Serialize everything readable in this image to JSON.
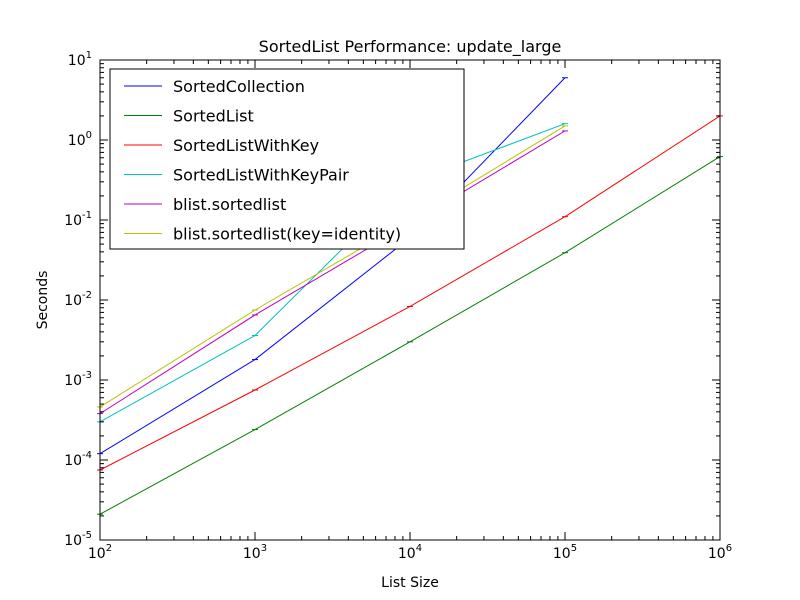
{
  "chart_data": {
    "type": "line",
    "title": "SortedList Performance: update_large",
    "xlabel": "List Size",
    "ylabel": "Seconds",
    "xscale": "log",
    "yscale": "log",
    "xlim": [
      100,
      1000000
    ],
    "ylim": [
      1e-05,
      10
    ],
    "x_ticks": [
      {
        "value": 100,
        "base": "10",
        "exp": "2"
      },
      {
        "value": 1000,
        "base": "10",
        "exp": "3"
      },
      {
        "value": 10000,
        "base": "10",
        "exp": "4"
      },
      {
        "value": 100000,
        "base": "10",
        "exp": "5"
      },
      {
        "value": 1000000,
        "base": "10",
        "exp": "6"
      }
    ],
    "y_ticks": [
      {
        "value": 1e-05,
        "base": "10",
        "exp": "-5"
      },
      {
        "value": 0.0001,
        "base": "10",
        "exp": "-4"
      },
      {
        "value": 0.001,
        "base": "10",
        "exp": "-3"
      },
      {
        "value": 0.01,
        "base": "10",
        "exp": "-2"
      },
      {
        "value": 0.1,
        "base": "10",
        "exp": "-1"
      },
      {
        "value": 1,
        "base": "10",
        "exp": "0"
      },
      {
        "value": 10,
        "base": "10",
        "exp": "1"
      }
    ],
    "grid": false,
    "legend_position": "top-left",
    "series": [
      {
        "name": "SortedCollection",
        "color": "#0000ff",
        "points": [
          [
            100,
            0.00012
          ],
          [
            1000,
            0.0018
          ],
          [
            10000,
            0.06
          ],
          [
            100000,
            6.0
          ]
        ]
      },
      {
        "name": "SortedList",
        "color": "#008000",
        "points": [
          [
            100,
            2.1e-05
          ],
          [
            1000,
            0.00024
          ],
          [
            10000,
            0.003
          ],
          [
            100000,
            0.039
          ],
          [
            1000000,
            0.62
          ]
        ]
      },
      {
        "name": "SortedListWithKey",
        "color": "#ff0000",
        "points": [
          [
            100,
            7.5e-05
          ],
          [
            1000,
            0.00075
          ],
          [
            10000,
            0.0083
          ],
          [
            100000,
            0.11
          ],
          [
            1000000,
            2.0
          ]
        ]
      },
      {
        "name": "SortedListWithKeyPair",
        "color": "#00bfbf",
        "points": [
          [
            100,
            0.0003
          ],
          [
            1000,
            0.0036
          ],
          [
            10000,
            0.3
          ],
          [
            100000,
            1.6
          ]
        ]
      },
      {
        "name": "blist.sortedlist",
        "color": "#bf00bf",
        "points": [
          [
            100,
            0.00038
          ],
          [
            1000,
            0.0065
          ],
          [
            10000,
            0.09
          ],
          [
            100000,
            1.3
          ]
        ]
      },
      {
        "name": "blist.sortedlist(key=identity)",
        "color": "#bfbf00",
        "points": [
          [
            100,
            0.00046
          ],
          [
            1000,
            0.0075
          ],
          [
            10000,
            0.1
          ],
          [
            100000,
            1.5
          ]
        ]
      }
    ]
  }
}
